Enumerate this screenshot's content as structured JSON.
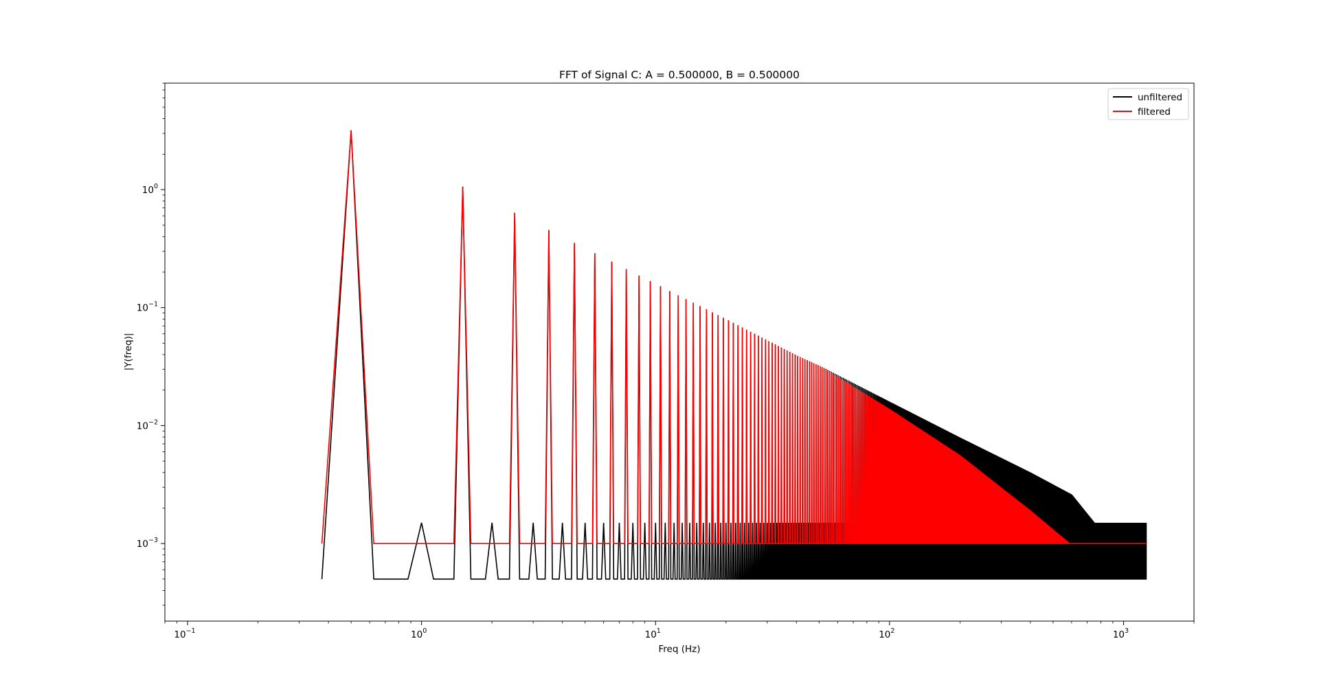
{
  "chart_data": {
    "type": "line",
    "title": "FFT of Signal C: A = 0.500000, B = 0.500000",
    "xlabel": "Freq (Hz)",
    "ylabel": "|Y(freq)|",
    "xscale": "log",
    "yscale": "log",
    "xlim": [
      0.08,
      2000
    ],
    "ylim": [
      0.00022,
      8
    ],
    "xticks": [
      {
        "value": 0.1,
        "base": "10",
        "exp": "−1"
      },
      {
        "value": 1,
        "base": "10",
        "exp": "0"
      },
      {
        "value": 10,
        "base": "10",
        "exp": "1"
      },
      {
        "value": 100,
        "base": "10",
        "exp": "2"
      },
      {
        "value": 1000,
        "base": "10",
        "exp": "3"
      }
    ],
    "yticks": [
      {
        "value": 0.001,
        "base": "10",
        "exp": "−3"
      },
      {
        "value": 0.01,
        "base": "10",
        "exp": "−2"
      },
      {
        "value": 0.1,
        "base": "10",
        "exp": "−1"
      },
      {
        "value": 1,
        "base": "10",
        "exp": "0"
      }
    ],
    "grid": false,
    "legend": {
      "position": "top-right"
    },
    "series": [
      {
        "name": "unfiltered",
        "color": "#000000",
        "floor": 0.0005,
        "even_harmonic_peak": 0.0015,
        "x": [
          0.5,
          1.5,
          2.5,
          3.5,
          4.5,
          5.5,
          6.5,
          7.5,
          8.5,
          9.5,
          10.5,
          11.5,
          12.5,
          13.5,
          14.5,
          15.5,
          20.5,
          30.5,
          40.5,
          50.5,
          100.5,
          200.5,
          400.5,
          600.5,
          750.5,
          1250
        ],
        "y": [
          3.18,
          1.06,
          0.637,
          0.455,
          0.354,
          0.289,
          0.245,
          0.212,
          0.187,
          0.168,
          0.152,
          0.138,
          0.127,
          0.118,
          0.11,
          0.103,
          0.078,
          0.052,
          0.039,
          0.032,
          0.0159,
          0.0079,
          0.004,
          0.0026,
          0.0015,
          0.0015
        ]
      },
      {
        "name": "filtered",
        "color": "#ff0000",
        "floor": 0.001,
        "x": [
          0.5,
          1.5,
          2.5,
          3.5,
          4.5,
          5.5,
          6.5,
          7.5,
          8.5,
          9.5,
          10.5,
          11.5,
          12.5,
          13.5,
          14.5,
          15.5,
          20.5,
          30.5,
          40.5,
          50.5,
          100.5,
          200.5,
          400.5,
          600.5,
          900.5,
          1250
        ],
        "y": [
          3.18,
          1.06,
          0.637,
          0.455,
          0.354,
          0.289,
          0.245,
          0.212,
          0.187,
          0.168,
          0.152,
          0.138,
          0.127,
          0.118,
          0.11,
          0.103,
          0.078,
          0.052,
          0.039,
          0.032,
          0.0138,
          0.0056,
          0.0019,
          0.00097,
          0.00048,
          0.00033
        ]
      }
    ]
  }
}
